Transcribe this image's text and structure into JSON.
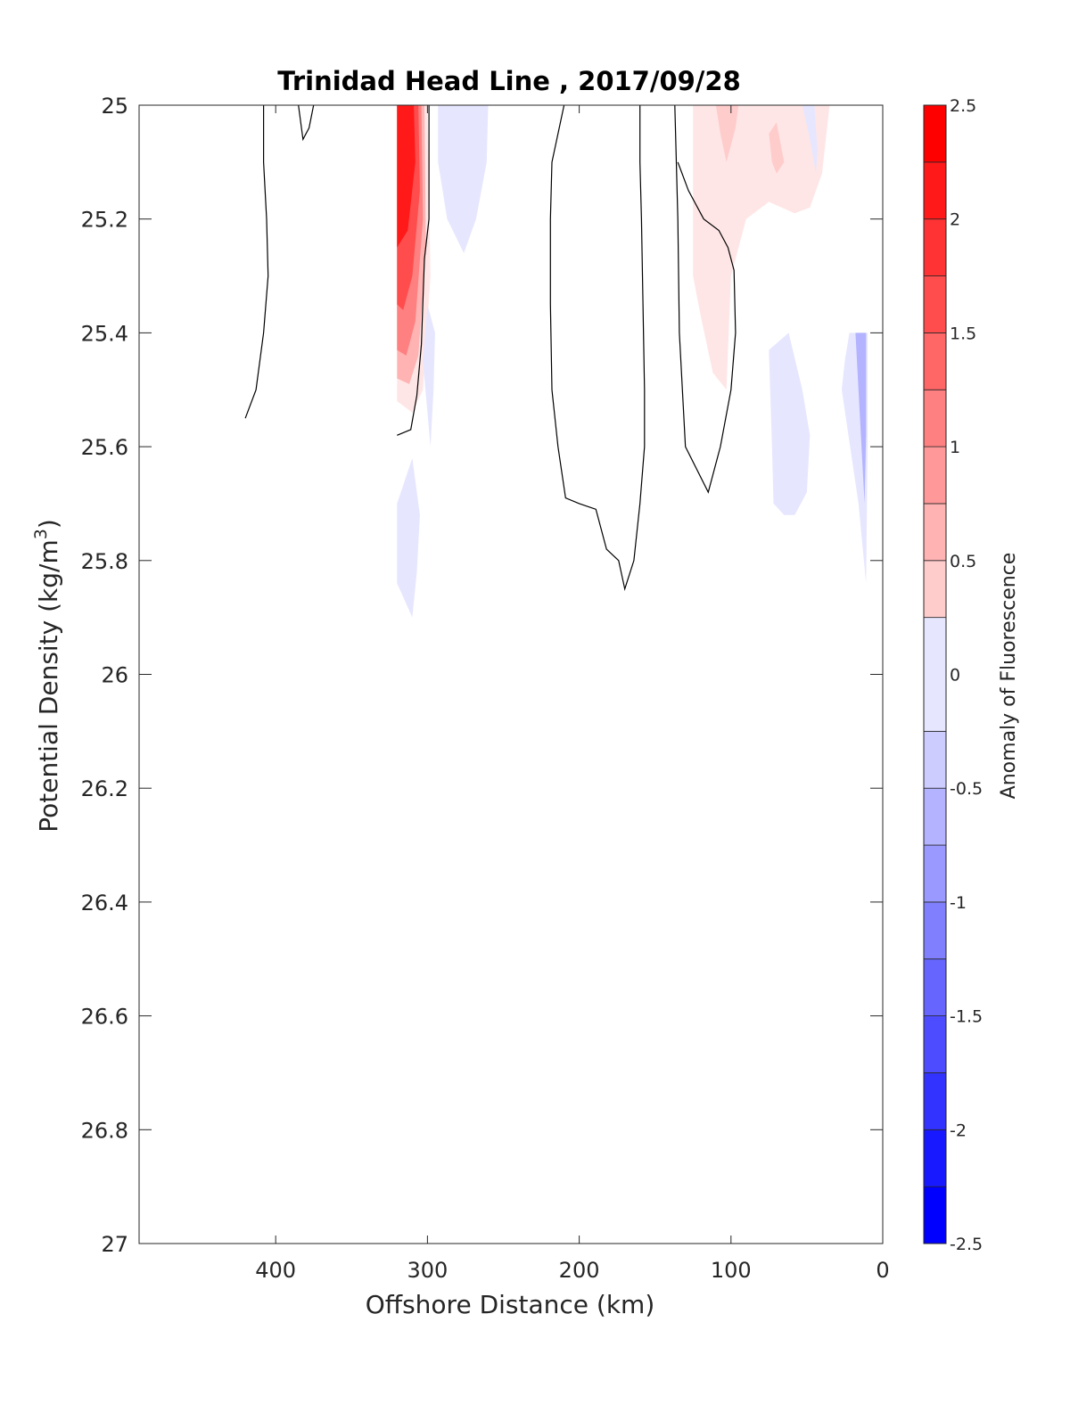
{
  "chart_data": {
    "type": "contour",
    "title": "Trinidad Head Line , 2017/09/28",
    "xlabel": "Offshore Distance (km)",
    "ylabel_main": "Potential Density (kg/m",
    "ylabel_sup": "3",
    "ylabel_close": ")",
    "colorbar_label": "Anomaly of Fluorescence",
    "xlim": [
      490,
      0
    ],
    "x_reversed": true,
    "ylim": [
      25,
      27
    ],
    "y_reversed": true,
    "x_ticks": [
      400,
      300,
      200,
      100,
      0
    ],
    "x_tick_labels": [
      "400",
      "300",
      "200",
      "100",
      "0"
    ],
    "y_ticks": [
      25,
      25.2,
      25.4,
      25.6,
      25.8,
      26,
      26.2,
      26.4,
      26.6,
      26.8,
      27
    ],
    "y_tick_labels": [
      "25",
      "25.2",
      "25.4",
      "25.6",
      "25.8",
      "26",
      "26.2",
      "26.4",
      "26.6",
      "26.8",
      "27"
    ],
    "colorbar": {
      "min": -2.5,
      "max": 2.5,
      "ticks": [
        2.5,
        2,
        1.5,
        1,
        0.5,
        0,
        -0.5,
        -1,
        -1.5,
        -2,
        -2.5
      ],
      "tick_labels": [
        "2.5",
        "2",
        "1.5",
        "1",
        "0.5",
        "0",
        "-0.5",
        "-1",
        "-1.5",
        "-2",
        "-2.5"
      ],
      "levels": [
        -2.5,
        -2.25,
        -2.0,
        -1.75,
        -1.5,
        -1.25,
        -1.0,
        -0.75,
        -0.5,
        -0.25,
        0.25,
        0.5,
        0.75,
        1.0,
        1.25,
        1.5,
        1.75,
        2.0,
        2.25,
        2.5
      ],
      "colormap": "blue-white-red",
      "neg_color": "#0000ff",
      "pos_color": "#ff0000"
    },
    "filled_regions": [
      {
        "level": 0.25,
        "points": [
          [
            320,
            25
          ],
          [
            300,
            25
          ],
          [
            298,
            25.3
          ],
          [
            303,
            25.5
          ],
          [
            310,
            25.54
          ],
          [
            320,
            25.52
          ]
        ]
      },
      {
        "level": 0.75,
        "points": [
          [
            320,
            25
          ],
          [
            302,
            25
          ],
          [
            301,
            25.25
          ],
          [
            306,
            25.44
          ],
          [
            312,
            25.49
          ],
          [
            320,
            25.48
          ]
        ]
      },
      {
        "level": 1.25,
        "points": [
          [
            320,
            25
          ],
          [
            304,
            25
          ],
          [
            303,
            25.2
          ],
          [
            308,
            25.38
          ],
          [
            314,
            25.44
          ],
          [
            320,
            25.43
          ]
        ]
      },
      {
        "level": 1.75,
        "points": [
          [
            320,
            25
          ],
          [
            306,
            25
          ],
          [
            305,
            25.15
          ],
          [
            310,
            25.3
          ],
          [
            316,
            25.36
          ],
          [
            320,
            25.35
          ]
        ]
      },
      {
        "level": 2.25,
        "points": [
          [
            320,
            25
          ],
          [
            309,
            25
          ],
          [
            308,
            25.1
          ],
          [
            313,
            25.22
          ],
          [
            320,
            25.25
          ]
        ]
      },
      {
        "level": -0.25,
        "points": [
          [
            293,
            25
          ],
          [
            260,
            25
          ],
          [
            261,
            25.1
          ],
          [
            268,
            25.2
          ],
          [
            276,
            25.26
          ],
          [
            287,
            25.2
          ],
          [
            293,
            25.1
          ]
        ]
      },
      {
        "level": -0.25,
        "points": [
          [
            300,
            25.35
          ],
          [
            295,
            25.4
          ],
          [
            296,
            25.5
          ],
          [
            298,
            25.6
          ],
          [
            303,
            25.45
          ]
        ]
      },
      {
        "level": -0.25,
        "points": [
          [
            320,
            25.7
          ],
          [
            310,
            25.62
          ],
          [
            305,
            25.72
          ],
          [
            307,
            25.82
          ],
          [
            310,
            25.9
          ],
          [
            320,
            25.84
          ]
        ]
      },
      {
        "level": 0.25,
        "points": [
          [
            125,
            25
          ],
          [
            35,
            25
          ],
          [
            40,
            25.12
          ],
          [
            48,
            25.18
          ],
          [
            58,
            25.19
          ],
          [
            75,
            25.17
          ],
          [
            90,
            25.2
          ],
          [
            100,
            25.3
          ],
          [
            103,
            25.5
          ],
          [
            112,
            25.47
          ],
          [
            120,
            25.37
          ],
          [
            125,
            25.3
          ]
        ]
      },
      {
        "level": 0.5,
        "points": [
          [
            110,
            25
          ],
          [
            95,
            25
          ],
          [
            97,
            25.04
          ],
          [
            103,
            25.1
          ],
          [
            107,
            25.05
          ]
        ]
      },
      {
        "level": 0.5,
        "points": [
          [
            75,
            25.05
          ],
          [
            70,
            25.03
          ],
          [
            65,
            25.1
          ],
          [
            70,
            25.12
          ],
          [
            73,
            25.1
          ]
        ]
      },
      {
        "level": -0.25,
        "points": [
          [
            53,
            25
          ],
          [
            45,
            25
          ],
          [
            43,
            25.08
          ],
          [
            44,
            25.12
          ],
          [
            48,
            25.06
          ]
        ]
      },
      {
        "level": -0.25,
        "points": [
          [
            75,
            25.43
          ],
          [
            62,
            25.4
          ],
          [
            53,
            25.5
          ],
          [
            48,
            25.58
          ],
          [
            50,
            25.68
          ],
          [
            58,
            25.72
          ],
          [
            65,
            25.72
          ],
          [
            72,
            25.7
          ],
          [
            73,
            25.6
          ]
        ]
      },
      {
        "level": -0.25,
        "points": [
          [
            22,
            25.4
          ],
          [
            10,
            25.4
          ],
          [
            10,
            25.6
          ],
          [
            11,
            25.84
          ],
          [
            16,
            25.7
          ],
          [
            27,
            25.5
          ],
          [
            25,
            25.45
          ]
        ]
      },
      {
        "level": -0.75,
        "points": [
          [
            18,
            25.4
          ],
          [
            11,
            25.4
          ],
          [
            11,
            25.58
          ],
          [
            12,
            25.7
          ],
          [
            15,
            25.55
          ]
        ]
      }
    ],
    "contour_lines": [
      [
        [
          420,
          25.55
        ],
        [
          413,
          25.5
        ],
        [
          408,
          25.4
        ],
        [
          405,
          25.3
        ],
        [
          406,
          25.2
        ],
        [
          408,
          25.1
        ],
        [
          408,
          25
        ]
      ],
      [
        [
          385,
          25
        ],
        [
          382,
          25.06
        ],
        [
          378,
          25.04
        ],
        [
          375,
          25
        ]
      ],
      [
        [
          320,
          25.58
        ],
        [
          311,
          25.57
        ],
        [
          307,
          25.51
        ],
        [
          304,
          25.42
        ],
        [
          302,
          25.27
        ],
        [
          299,
          25.2
        ],
        [
          299,
          25
        ]
      ],
      [
        [
          210,
          25
        ],
        [
          218,
          25.1
        ],
        [
          219,
          25.2
        ],
        [
          219,
          25.35
        ],
        [
          218,
          25.5
        ],
        [
          214,
          25.6
        ],
        [
          209,
          25.69
        ],
        [
          200,
          25.7
        ],
        [
          189,
          25.71
        ],
        [
          182,
          25.78
        ],
        [
          174,
          25.8
        ],
        [
          170,
          25.85
        ],
        [
          164,
          25.8
        ],
        [
          160,
          25.7
        ],
        [
          157,
          25.6
        ],
        [
          157,
          25.5
        ],
        [
          158,
          25.35
        ],
        [
          159,
          25.2
        ],
        [
          160,
          25.1
        ],
        [
          160,
          25
        ]
      ],
      [
        [
          137,
          25
        ],
        [
          135,
          25.2
        ],
        [
          134,
          25.4
        ],
        [
          130,
          25.6
        ],
        [
          115,
          25.68
        ],
        [
          107,
          25.6
        ],
        [
          100,
          25.5
        ],
        [
          97,
          25.4
        ],
        [
          98,
          25.29
        ],
        [
          102,
          25.25
        ],
        [
          108,
          25.22
        ],
        [
          118,
          25.2
        ],
        [
          128,
          25.15
        ],
        [
          135,
          25.1
        ]
      ]
    ]
  }
}
